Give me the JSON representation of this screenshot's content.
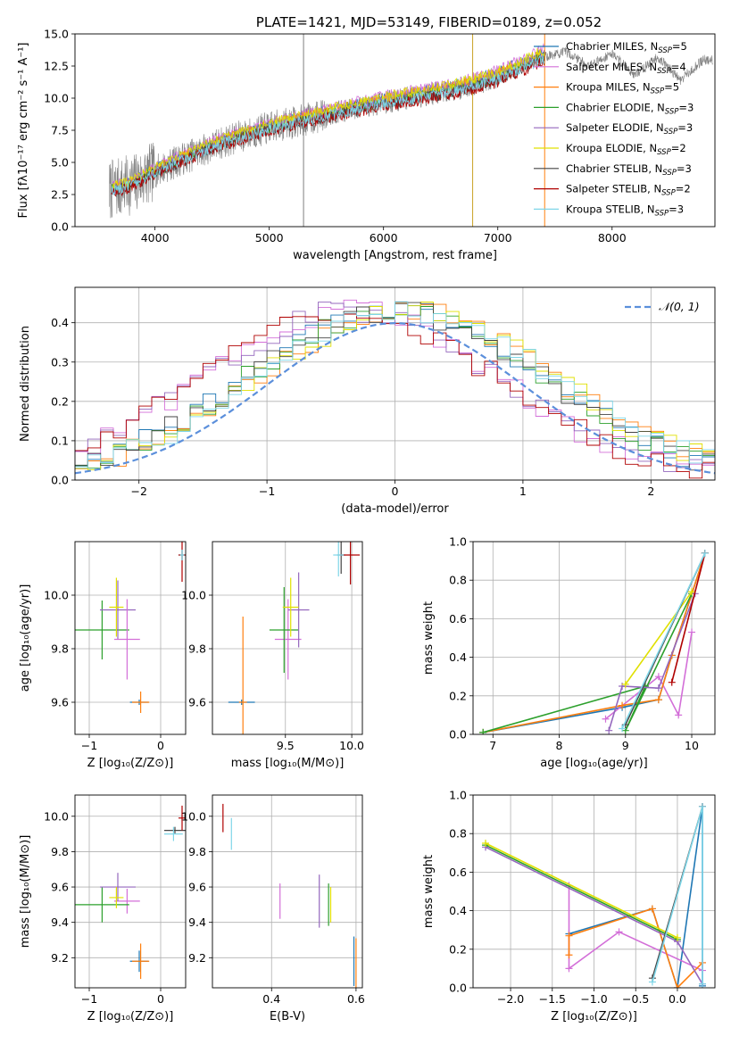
{
  "figure_title": "PLATE=1421, MJD=53149, FIBERID=0189, z=0.052",
  "colors": {
    "Chabrier MILES": "#1f77b4",
    "Salpeter MILES": "#d36fd8",
    "Kroupa MILES": "#ff7f0e",
    "Chabrier ELODIE": "#2ca02c",
    "Salpeter ELODIE": "#9467bd",
    "Kroupa ELODIE": "#e0e000",
    "Chabrier STELIB": "#444444",
    "Salpeter STELIB": "#b00000",
    "Kroupa STELIB": "#7fd6e8",
    "data": "#808080",
    "normal": "#5b8fdb"
  },
  "chart_data": [
    {
      "id": "spectrum",
      "type": "line",
      "title": "PLATE=1421, MJD=53149, FIBERID=0189, z=0.052",
      "xlabel": "wavelength [Angstrom, rest frame]",
      "ylabel": "Flux [fλ10⁻¹⁷ erg cm⁻² s⁻¹ A⁻¹]",
      "xlim": [
        3300,
        8900
      ],
      "ylim": [
        0,
        15
      ],
      "xticks": [
        4000,
        5000,
        6000,
        7000,
        8000
      ],
      "yticks": [
        0.0,
        2.5,
        5.0,
        7.5,
        10.0,
        12.5,
        15.0
      ],
      "legend": "right",
      "legend_entries": [
        {
          "name": "Chabrier MILES",
          "nssp": "N_SSP=5"
        },
        {
          "name": "Salpeter MILES",
          "nssp": "N_SSP=4"
        },
        {
          "name": "Kroupa MILES",
          "nssp": "N_SSP=5"
        },
        {
          "name": "Chabrier ELODIE",
          "nssp": "N_SSP=3"
        },
        {
          "name": "Salpeter ELODIE",
          "nssp": "N_SSP=3"
        },
        {
          "name": "Kroupa ELODIE",
          "nssp": "N_SSP=2"
        },
        {
          "name": "Chabrier STELIB",
          "nssp": "N_SSP=3"
        },
        {
          "name": "Salpeter STELIB",
          "nssp": "N_SSP=2"
        },
        {
          "name": "Kroupa STELIB",
          "nssp": "N_SSP=3"
        }
      ],
      "continuum_knots": {
        "x": [
          3600,
          3800,
          4000,
          4300,
          4600,
          5000,
          5400,
          5800,
          6200,
          6600,
          7000,
          7400,
          7600,
          7800,
          8000,
          8200,
          8400,
          8600,
          8800
        ],
        "y": [
          2.8,
          3.3,
          4.3,
          5.5,
          6.6,
          7.7,
          8.5,
          9.3,
          10.0,
          10.6,
          11.6,
          13.2,
          13.6,
          12.5,
          13.5,
          11.8,
          13.2,
          11.4,
          13.0
        ]
      }
    },
    {
      "id": "residuals",
      "type": "histogram",
      "xlabel": "(data-model)/error",
      "ylabel": "Normed distribution",
      "xlim": [
        -2.5,
        2.5
      ],
      "ylim": [
        0,
        0.49
      ],
      "xticks": [
        -2,
        -1,
        0,
        1,
        2
      ],
      "yticks": [
        0.0,
        0.1,
        0.2,
        0.3,
        0.4
      ],
      "grid": true,
      "legend": "top-right",
      "normal_label": "𝒩(0, 1)",
      "bin_width": 0.1,
      "bin_start": -2.5
    },
    {
      "id": "age-vs-Z",
      "type": "errorbar",
      "xlabel": "Z [log₁₀(Z/Z⊙)]",
      "ylabel": "age  [log₁₀(age/yr)]",
      "xlim": [
        -1.2,
        0.35
      ],
      "ylim": [
        9.48,
        10.2
      ],
      "xticks": [
        -1,
        0
      ],
      "yticks": [
        9.6,
        9.8,
        10.0
      ],
      "grid": true,
      "points": [
        {
          "series": "Chabrier MILES",
          "x": -0.3,
          "y": 9.6,
          "xerr": 0.13,
          "yerr": 0.01
        },
        {
          "series": "Kroupa MILES",
          "x": -0.28,
          "y": 9.6,
          "xerr": 0.12,
          "yerr": 0.04
        },
        {
          "series": "Chabrier ELODIE",
          "x": -0.82,
          "y": 9.87,
          "xerr": 0.38,
          "yerr": 0.11
        },
        {
          "series": "Salpeter ELODIE",
          "x": -0.6,
          "y": 9.945,
          "xerr": 0.25,
          "yerr": 0.11
        },
        {
          "series": "Kroupa ELODIE",
          "x": -0.62,
          "y": 9.955,
          "xerr": 0.1,
          "yerr": 0.11
        },
        {
          "series": "Salpeter MILES",
          "x": -0.47,
          "y": 9.835,
          "xerr": 0.18,
          "yerr": 0.15
        },
        {
          "series": "Chabrier STELIB",
          "x": 0.3,
          "y": 10.15,
          "xerr": 0.05,
          "yerr": 0.02
        },
        {
          "series": "Salpeter STELIB",
          "x": 0.3,
          "y": 10.15,
          "xerr": 0.05,
          "yerr": 0.1
        },
        {
          "series": "Kroupa STELIB",
          "x": 0.3,
          "y": 10.15,
          "xerr": 0.03,
          "yerr": 0.02
        }
      ]
    },
    {
      "id": "age-vs-mass",
      "type": "errorbar",
      "xlabel": "mass [log₁₀(M/M⊙)]",
      "ylabel": "",
      "xlim": [
        8.95,
        10.08
      ],
      "ylim": [
        9.48,
        10.2
      ],
      "xticks": [
        9.5,
        10.0
      ],
      "xticklabels": [
        "9.5",
        "10.0"
      ],
      "yticks": [
        9.6,
        9.8,
        10.0
      ],
      "grid": true,
      "points": [
        {
          "series": "Chabrier MILES",
          "x": 9.17,
          "y": 9.6,
          "xerr": 0.1,
          "yerr": 0.01
        },
        {
          "series": "Kroupa MILES",
          "x": 9.18,
          "y": 9.6,
          "xerr": 0.03,
          "yerr": 0.32
        },
        {
          "series": "Salpeter MILES",
          "x": 9.52,
          "y": 9.835,
          "xerr": 0.1,
          "yerr": 0.15
        },
        {
          "series": "Chabrier ELODIE",
          "x": 9.49,
          "y": 9.87,
          "xerr": 0.11,
          "yerr": 0.16
        },
        {
          "series": "Salpeter ELODIE",
          "x": 9.6,
          "y": 9.945,
          "xerr": 0.08,
          "yerr": 0.14
        },
        {
          "series": "Kroupa ELODIE",
          "x": 9.54,
          "y": 9.955,
          "xerr": 0.06,
          "yerr": 0.11
        },
        {
          "series": "Chabrier STELIB",
          "x": 9.92,
          "y": 10.15,
          "xerr": 0.03,
          "yerr": 0.07
        },
        {
          "series": "Salpeter STELIB",
          "x": 9.99,
          "y": 10.15,
          "xerr": 0.07,
          "yerr": 0.11
        },
        {
          "series": "Kroupa STELIB",
          "x": 9.9,
          "y": 10.15,
          "xerr": 0.04,
          "yerr": 0.08
        }
      ]
    },
    {
      "id": "weight-vs-age",
      "type": "line",
      "xlabel": "age  [log₁₀(age/yr)]",
      "ylabel": "mass weight",
      "xlim": [
        6.7,
        10.35
      ],
      "ylim": [
        0,
        1.0
      ],
      "xticks": [
        7,
        8,
        9,
        10
      ],
      "yticks": [
        0.0,
        0.2,
        0.4,
        0.6,
        0.8,
        1.0
      ],
      "grid": true,
      "series": [
        {
          "name": "Chabrier MILES",
          "x": [
            6.85,
            8.95,
            9.5,
            9.7,
            10.2
          ],
          "y": [
            0.01,
            0.14,
            0.18,
            0.41,
            0.94
          ]
        },
        {
          "name": "Salpeter MILES",
          "x": [
            8.7,
            9.5,
            9.8,
            10.0
          ],
          "y": [
            0.08,
            0.3,
            0.1,
            0.53
          ]
        },
        {
          "name": "Kroupa MILES",
          "x": [
            6.85,
            8.95,
            9.5,
            9.7,
            10.2
          ],
          "y": [
            0.01,
            0.15,
            0.18,
            0.41,
            0.94
          ]
        },
        {
          "name": "Chabrier ELODIE",
          "x": [
            6.85,
            9.3,
            9.0,
            10.0
          ],
          "y": [
            0.01,
            0.25,
            0.02,
            0.73
          ]
        },
        {
          "name": "Salpeter ELODIE",
          "x": [
            8.75,
            8.95,
            9.5,
            10.05
          ],
          "y": [
            0.02,
            0.25,
            0.24,
            0.73
          ]
        },
        {
          "name": "Kroupa ELODIE",
          "x": [
            9.0,
            10.0
          ],
          "y": [
            0.26,
            0.74
          ]
        },
        {
          "name": "Chabrier STELIB",
          "x": [
            9.0,
            10.2
          ],
          "y": [
            0.05,
            0.94
          ]
        },
        {
          "name": "Salpeter STELIB",
          "x": [
            9.7,
            10.2
          ],
          "y": [
            0.27,
            0.94
          ]
        },
        {
          "name": "Kroupa STELIB",
          "x": [
            8.95,
            10.2
          ],
          "y": [
            0.03,
            0.94
          ]
        }
      ]
    },
    {
      "id": "mass-vs-Z",
      "type": "errorbar",
      "xlabel": "Z [log₁₀(Z/Z⊙)]",
      "ylabel": "mass [log₁₀(M/M⊙)]",
      "xlim": [
        -1.2,
        0.35
      ],
      "ylim": [
        9.03,
        10.12
      ],
      "xticks": [
        -1,
        0
      ],
      "yticks": [
        9.2,
        9.4,
        9.6,
        9.8,
        10.0
      ],
      "grid": true,
      "points": [
        {
          "series": "Chabrier MILES",
          "x": -0.3,
          "y": 9.18,
          "xerr": 0.13,
          "yerr": 0.06
        },
        {
          "series": "Kroupa MILES",
          "x": -0.28,
          "y": 9.18,
          "xerr": 0.12,
          "yerr": 0.1
        },
        {
          "series": "Salpeter MILES",
          "x": -0.47,
          "y": 9.52,
          "xerr": 0.18,
          "yerr": 0.07
        },
        {
          "series": "Chabrier ELODIE",
          "x": -0.82,
          "y": 9.5,
          "xerr": 0.38,
          "yerr": 0.1
        },
        {
          "series": "Salpeter ELODIE",
          "x": -0.6,
          "y": 9.6,
          "xerr": 0.25,
          "yerr": 0.08
        },
        {
          "series": "Kroupa ELODIE",
          "x": -0.62,
          "y": 9.54,
          "xerr": 0.1,
          "yerr": 0.06
        },
        {
          "series": "Chabrier STELIB",
          "x": 0.2,
          "y": 9.92,
          "xerr": 0.15,
          "yerr": 0.02
        },
        {
          "series": "Salpeter STELIB",
          "x": 0.3,
          "y": 9.99,
          "xerr": 0.05,
          "yerr": 0.07
        },
        {
          "series": "Kroupa STELIB",
          "x": 0.18,
          "y": 9.9,
          "xerr": 0.13,
          "yerr": 0.04
        }
      ]
    },
    {
      "id": "mass-vs-ebv",
      "type": "errorbar",
      "xlabel": "E(B-V)",
      "ylabel": "",
      "xlim": [
        0.26,
        0.615
      ],
      "ylim": [
        9.03,
        10.12
      ],
      "xticks": [
        0.4,
        0.6
      ],
      "yticks": [
        9.2,
        9.4,
        9.6,
        9.8,
        10.0
      ],
      "grid": true,
      "points": [
        {
          "series": "Salpeter STELIB",
          "x": 0.285,
          "y": 9.99,
          "xerr": 0.0,
          "yerr": 0.08
        },
        {
          "series": "Kroupa STELIB",
          "x": 0.305,
          "y": 9.9,
          "xerr": 0.0,
          "yerr": 0.09
        },
        {
          "series": "Salpeter MILES",
          "x": 0.42,
          "y": 9.52,
          "xerr": 0.0,
          "yerr": 0.1
        },
        {
          "series": "Salpeter ELODIE",
          "x": 0.513,
          "y": 9.52,
          "xerr": 0.0,
          "yerr": 0.15
        },
        {
          "series": "Chabrier ELODIE",
          "x": 0.535,
          "y": 9.5,
          "xerr": 0.0,
          "yerr": 0.12
        },
        {
          "series": "Kroupa ELODIE",
          "x": 0.54,
          "y": 9.5,
          "xerr": 0.0,
          "yerr": 0.1
        },
        {
          "series": "Chabrier MILES",
          "x": 0.595,
          "y": 9.18,
          "xerr": 0.0,
          "yerr": 0.14
        },
        {
          "series": "Kroupa MILES",
          "x": 0.6,
          "y": 9.15,
          "xerr": 0.0,
          "yerr": 0.16
        }
      ]
    },
    {
      "id": "weight-vs-Z",
      "type": "line",
      "xlabel": "Z [log₁₀(Z/Z⊙)]",
      "ylabel": "mass weight",
      "xlim": [
        -2.45,
        0.45
      ],
      "ylim": [
        0,
        1.0
      ],
      "xticks": [
        -2.0,
        -1.5,
        -1.0,
        -0.5,
        0.0
      ],
      "yticks": [
        0.0,
        0.2,
        0.4,
        0.6,
        0.8,
        1.0
      ],
      "grid": true,
      "series": [
        {
          "name": "Chabrier MILES",
          "x": [
            -1.3,
            -0.3,
            0.0,
            0.3,
            0.3
          ],
          "y": [
            0.28,
            0.41,
            0.0,
            0.94,
            0.01
          ]
        },
        {
          "name": "Salpeter MILES",
          "x": [
            -1.3,
            -1.3,
            -0.7,
            0.3,
            0.3
          ],
          "y": [
            0.53,
            0.1,
            0.29,
            0.09,
            0.13
          ]
        },
        {
          "name": "Kroupa MILES",
          "x": [
            -1.3,
            -1.3,
            -0.3,
            0.0,
            0.3
          ],
          "y": [
            0.17,
            0.27,
            0.41,
            0.0,
            0.13
          ]
        },
        {
          "name": "Chabrier ELODIE",
          "x": [
            -2.3,
            0.0
          ],
          "y": [
            0.74,
            0.25
          ]
        },
        {
          "name": "Salpeter ELODIE",
          "x": [
            -2.3,
            0.0,
            0.3
          ],
          "y": [
            0.73,
            0.24,
            0.02
          ]
        },
        {
          "name": "Kroupa ELODIE",
          "x": [
            -2.3,
            0.0
          ],
          "y": [
            0.75,
            0.26
          ]
        },
        {
          "name": "Chabrier STELIB",
          "x": [
            -0.3,
            0.3
          ],
          "y": [
            0.05,
            0.94
          ]
        },
        {
          "name": "Salpeter STELIB",
          "x": [
            0.3
          ],
          "y": [
            0.94
          ]
        },
        {
          "name": "Kroupa STELIB",
          "x": [
            -0.3,
            0.3,
            0.3
          ],
          "y": [
            0.03,
            0.94,
            0.02
          ]
        }
      ]
    }
  ]
}
